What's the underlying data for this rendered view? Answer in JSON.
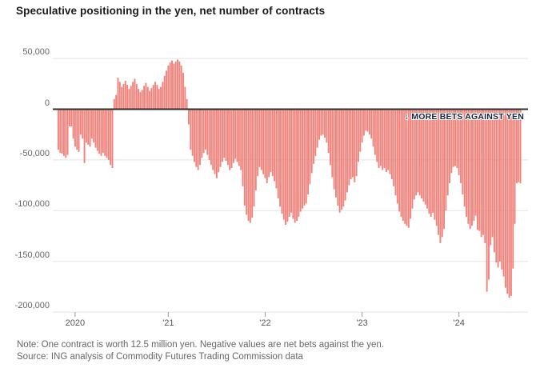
{
  "title": "Speculative positioning in the yen, net number of contracts",
  "annotation": {
    "arrow": "↓",
    "text": "MORE BETS AGAINST YEN"
  },
  "footer": {
    "note": "Note: One contract is worth 12.5 million yen. Negative values are net bets against the yen.",
    "source": "Source: ING analysis of Commodity Futures Trading Commission data"
  },
  "colors": {
    "bar": "#f0827b",
    "zero_line": "#2e2e2e",
    "gridline": "#e3e3e3",
    "tick": "#999999",
    "axis_text": "#666666",
    "title_text": "#1a1a1a",
    "annotation_text": "#16243d"
  },
  "chart_data": {
    "type": "bar",
    "title": "Speculative positioning in the yen, net number of contracts",
    "unit": "net number of contracts",
    "frequency": "weekly",
    "grid": true,
    "y_axis": {
      "tick_values": [
        50000,
        0,
        -50000,
        -100000,
        -150000,
        -200000
      ],
      "tick_labels": [
        "50,000",
        "0",
        "-50,000",
        "-100,000",
        "-150,000",
        "-200,000"
      ],
      "range": [
        -205000,
        55000
      ]
    },
    "x_axis": {
      "tick_labels": [
        "2020",
        "'21",
        "'22",
        "'23",
        "'24"
      ],
      "tick_week_indices": [
        9,
        59,
        111,
        163,
        215
      ],
      "start": "late 2019",
      "end": "mid 2024"
    },
    "values": [
      -40000,
      -43000,
      -44000,
      -46000,
      -48000,
      -45000,
      -17000,
      -17000,
      -29000,
      -37000,
      -40000,
      -42000,
      -25000,
      -29000,
      -53000,
      -33000,
      -35000,
      -37000,
      -29000,
      -33000,
      -38000,
      -41000,
      -44000,
      -46000,
      -43000,
      -46000,
      -48000,
      -50000,
      -55000,
      -58000,
      10000,
      14000,
      31000,
      27000,
      22000,
      25000,
      28000,
      24000,
      20000,
      23000,
      27000,
      30000,
      25000,
      20000,
      17000,
      19000,
      23000,
      26000,
      22000,
      18000,
      21000,
      24000,
      27000,
      24000,
      20000,
      22000,
      27000,
      33000,
      38000,
      43000,
      46000,
      48000,
      45000,
      47000,
      49000,
      47000,
      43000,
      36000,
      22000,
      10000,
      -15000,
      -40000,
      -46000,
      -52000,
      -57000,
      -60000,
      -55000,
      -48000,
      -43000,
      -40000,
      -45000,
      -50000,
      -55000,
      -60000,
      -64000,
      -68000,
      -62000,
      -57000,
      -52000,
      -48000,
      -51000,
      -55000,
      -60000,
      -58000,
      -53000,
      -49000,
      -52000,
      -56000,
      -60000,
      -76000,
      -95000,
      -104000,
      -110000,
      -112000,
      -107000,
      -96000,
      -80000,
      -66000,
      -57000,
      -60000,
      -64000,
      -68000,
      -73000,
      -67000,
      -62000,
      -66000,
      -71000,
      -78000,
      -88000,
      -96000,
      -103000,
      -109000,
      -114000,
      -111000,
      -106000,
      -102000,
      -108000,
      -112000,
      -110000,
      -106000,
      -101000,
      -98000,
      -95000,
      -93000,
      -84000,
      -74000,
      -63000,
      -54000,
      -46000,
      -38000,
      -30000,
      -26000,
      -25000,
      -28000,
      -33000,
      -43000,
      -55000,
      -67000,
      -79000,
      -87000,
      -95000,
      -102000,
      -99000,
      -96000,
      -90000,
      -82000,
      -75000,
      -69000,
      -67000,
      -72000,
      -66000,
      -52000,
      -42000,
      -33000,
      -26000,
      -21000,
      -22000,
      -25000,
      -29000,
      -37000,
      -45000,
      -52000,
      -58000,
      -56000,
      -60000,
      -58000,
      -62000,
      -60000,
      -64000,
      -69000,
      -76000,
      -85000,
      -93000,
      -101000,
      -106000,
      -110000,
      -113000,
      -115000,
      -117000,
      -108000,
      -98000,
      -89000,
      -85000,
      -82000,
      -85000,
      -88000,
      -91000,
      -94000,
      -98000,
      -103000,
      -106000,
      -102000,
      -109000,
      -115000,
      -124000,
      -132000,
      -126000,
      -118000,
      -100000,
      -85000,
      -73000,
      -63000,
      -57000,
      -56000,
      -58000,
      -65000,
      -73000,
      -84000,
      -96000,
      -106000,
      -113000,
      -118000,
      -115000,
      -110000,
      -105000,
      -119000,
      -120000,
      -126000,
      -124000,
      -132000,
      -180000,
      -168000,
      -134000,
      -126000,
      -141000,
      -151000,
      -156000,
      -150000,
      -158000,
      -165000,
      -176000,
      -182000,
      -186000,
      -184000,
      -157000,
      -113000,
      -73000,
      -72000,
      -73000
    ]
  }
}
